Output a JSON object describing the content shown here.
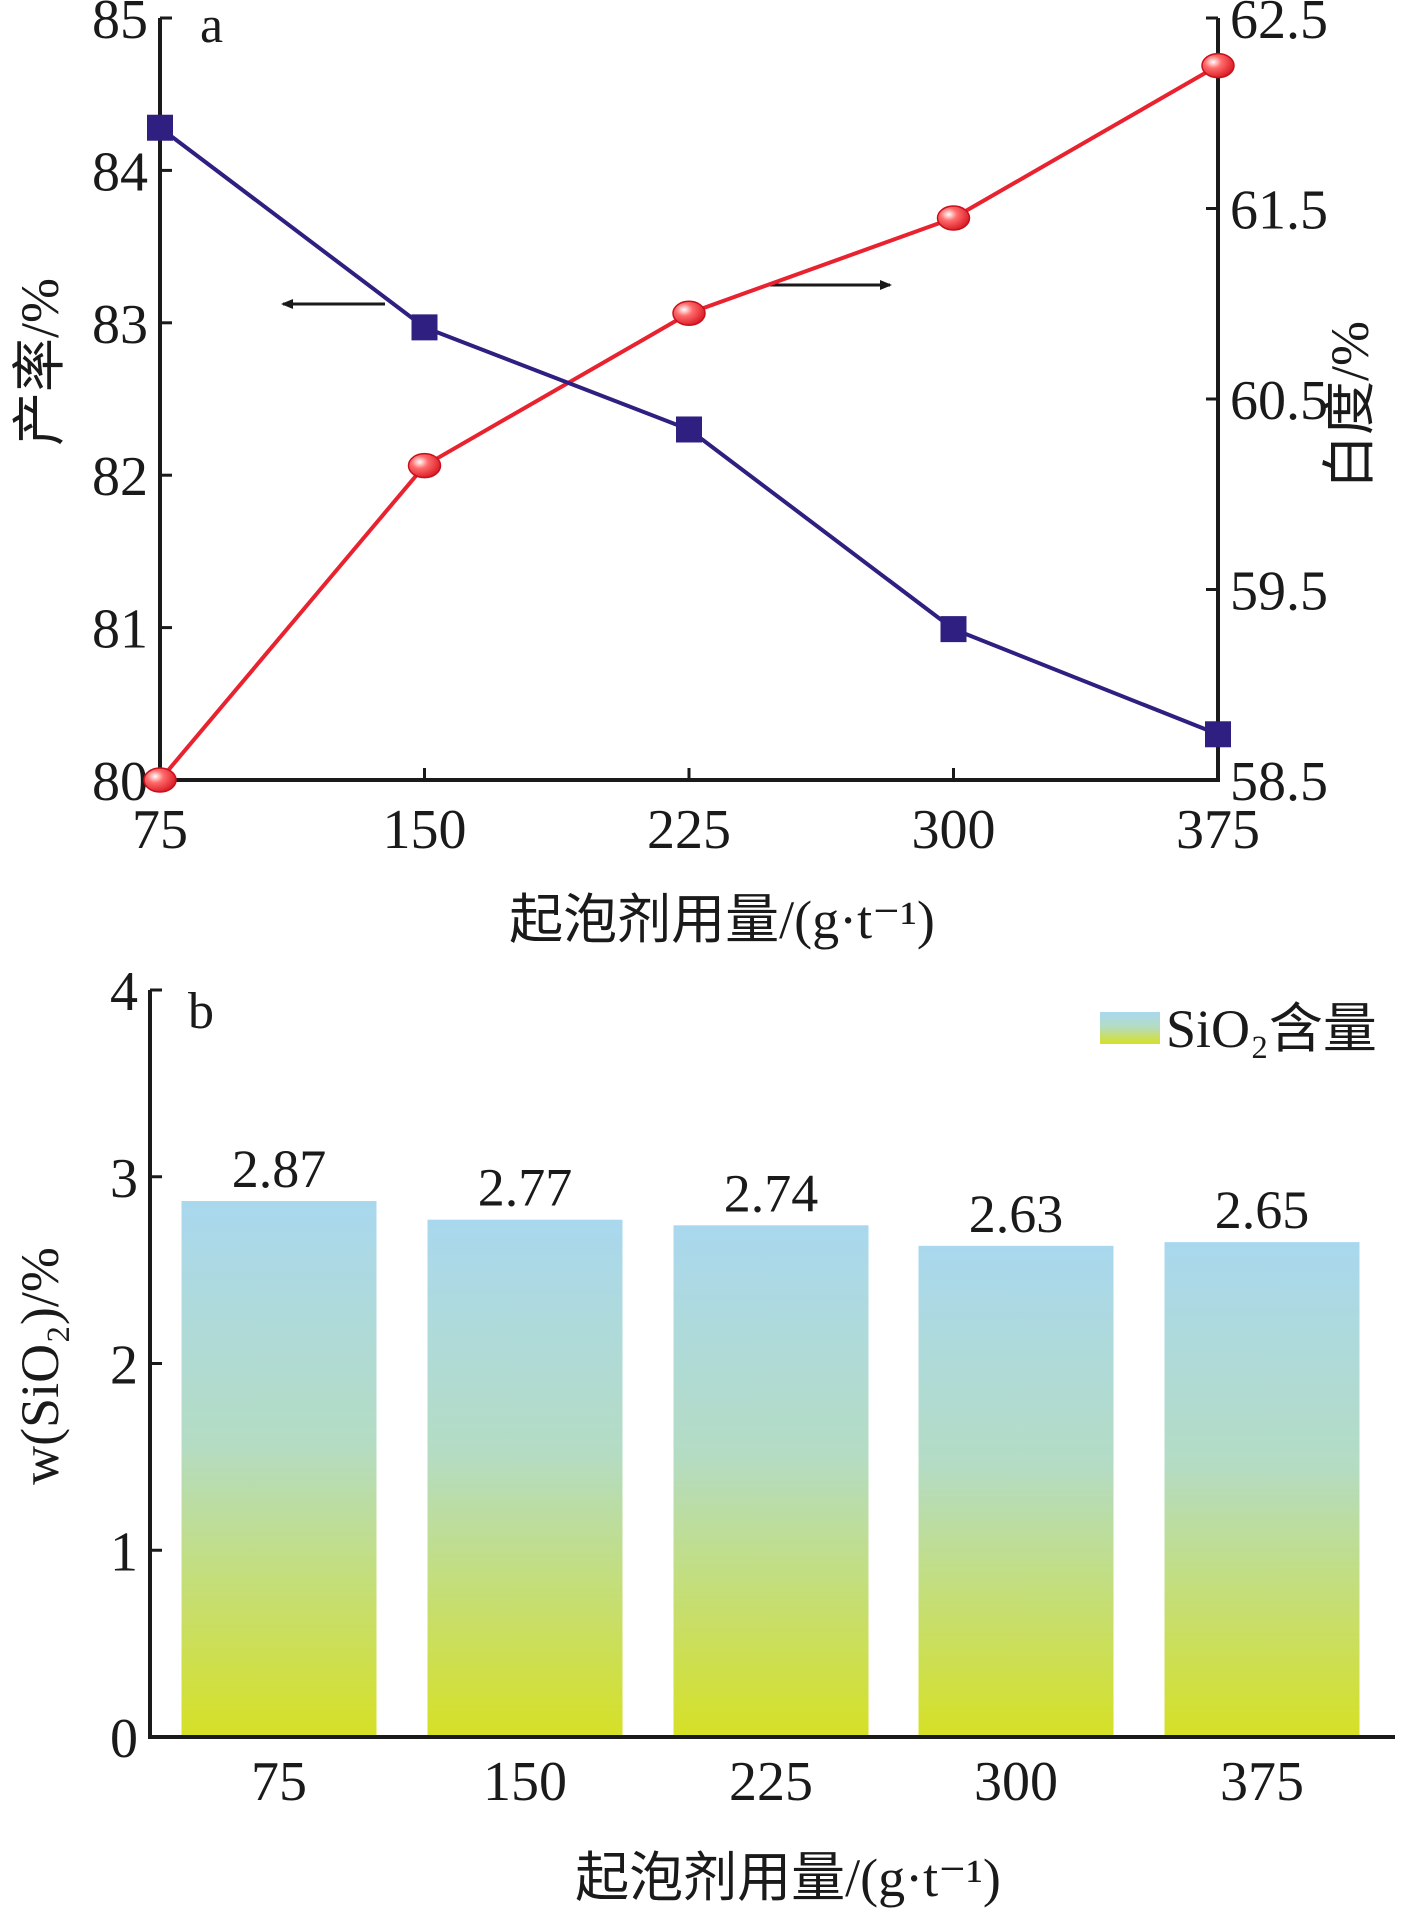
{
  "chart_data": [
    {
      "panel_label": "a",
      "type": "line",
      "xlabel": "起泡剂用量/(g·t⁻¹)",
      "ylabel_left": "产率/%",
      "ylabel_right": "白度/%",
      "x": [
        75,
        150,
        225,
        300,
        375
      ],
      "x_ticks": [
        "75",
        "150",
        "225",
        "300",
        "375"
      ],
      "y_left_ticks": [
        "80",
        "81",
        "82",
        "83",
        "84",
        "85"
      ],
      "y_right_ticks": [
        "58.5",
        "59.5",
        "60.5",
        "61.5",
        "62.5"
      ],
      "ylim_left": [
        80,
        85
      ],
      "ylim_right": [
        58.5,
        62.5
      ],
      "series": [
        {
          "axis": "left",
          "color": "#2f1f80",
          "marker": "square",
          "values": [
            84.28,
            82.97,
            82.3,
            80.99,
            80.3
          ]
        },
        {
          "axis": "right",
          "color": "#e8232f",
          "marker": "circle",
          "values": [
            58.5,
            60.15,
            60.95,
            61.45,
            62.25
          ]
        }
      ],
      "annotations": [
        "left-pointing arrow toward left axis",
        "right-pointing arrow toward right axis"
      ]
    },
    {
      "panel_label": "b",
      "type": "bar",
      "xlabel": "起泡剂用量/(g·t⁻¹)",
      "ylabel": "w(SiO₂)/%",
      "categories": [
        "75",
        "150",
        "225",
        "300",
        "375"
      ],
      "y_ticks": [
        "0",
        "1",
        "2",
        "3",
        "4"
      ],
      "ylim": [
        0,
        4
      ],
      "series": [
        {
          "name": "SiO₂含量",
          "values": [
            2.87,
            2.77,
            2.74,
            2.63,
            2.65
          ],
          "value_labels": [
            "2.87",
            "2.77",
            "2.74",
            "2.63",
            "2.65"
          ],
          "gradient_top": "#a9d8ee",
          "gradient_bottom": "#d6e025"
        }
      ],
      "legend_position": "top-right"
    }
  ]
}
